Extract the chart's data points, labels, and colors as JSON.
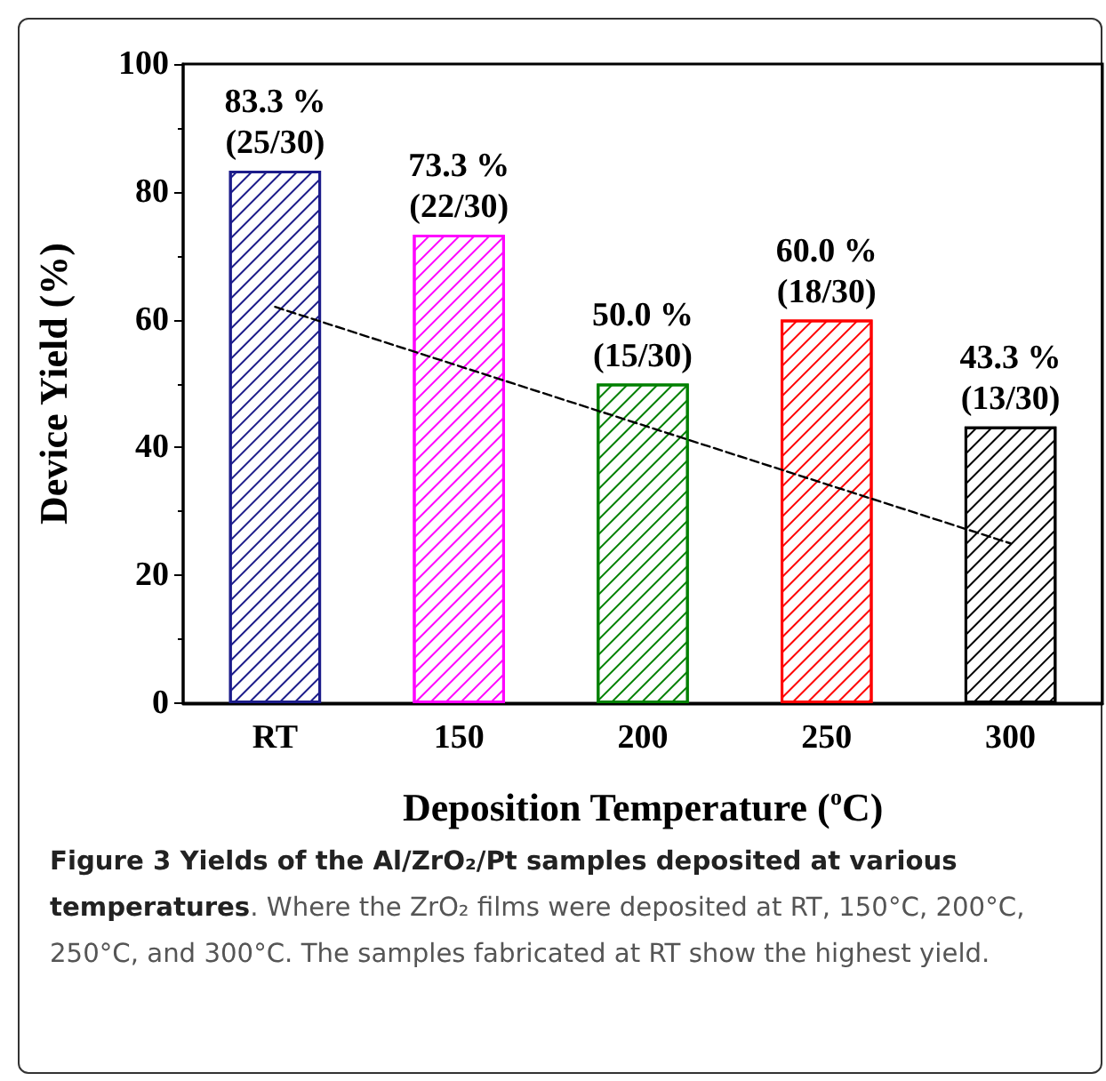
{
  "chart_data": {
    "type": "bar",
    "xlabel": "Deposition Temperature ($^{o}$C)",
    "ylabel": "Device Yield (%)",
    "categories": [
      "RT",
      "150",
      "200",
      "250",
      "300"
    ],
    "series": [
      {
        "values": [
          83.3,
          73.3,
          50.0,
          60.0,
          43.3
        ],
        "colors": [
          "#1c1c8a",
          "#ff00ff",
          "#008000",
          "#ff0000",
          "#000000"
        ],
        "value_labels": [
          "83.3 %\n(25/30)",
          "73.3 %\n(22/30)",
          "50.0 %\n(15/30)",
          "60.0 %\n(18/30)",
          "43.3 %\n(13/30)"
        ]
      },
      {
        "type": "line",
        "x": [
          "RT",
          "300"
        ],
        "values": [
          62,
          25
        ],
        "color": "#000000",
        "line_style": "dashed"
      }
    ],
    "ylim": [
      0,
      100
    ],
    "yticks": [
      0,
      20,
      40,
      60,
      80,
      100
    ],
    "grid": false,
    "annotations": [
      "Figure 3 Yields of the Al/ZrO₂/Pt samples deposited at various temperatures",
      ". Where the ZrO₂ films were deposited at RT, 150°C, 200°C, 250°C, and 300°C. The samples fabricated at RT show the highest yield."
    ]
  }
}
